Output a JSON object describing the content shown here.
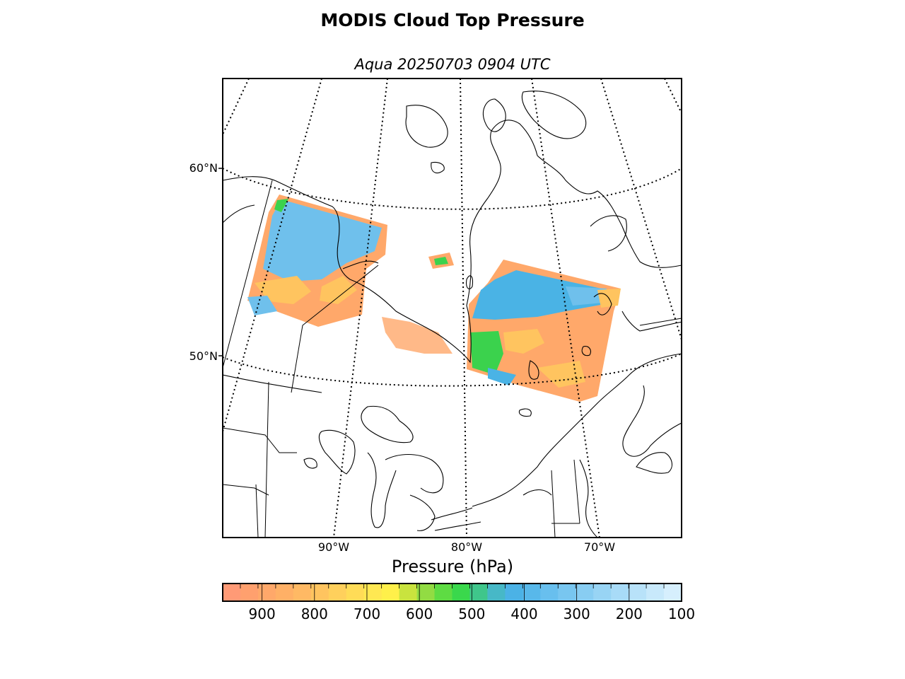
{
  "title": "MODIS Cloud Top Pressure",
  "subtitle": "Aqua 20250703 0904 UTC",
  "lat_labels": [
    "60°N",
    "50°N"
  ],
  "lon_labels": [
    "90°W",
    "80°W",
    "70°W"
  ],
  "colorbar": {
    "label": "Pressure (hPa)",
    "range": [
      975,
      100
    ],
    "tick_values": [
      900,
      800,
      700,
      600,
      500,
      400,
      300,
      200,
      100
    ],
    "tick_labels": [
      "900",
      "800",
      "700",
      "600",
      "500",
      "400",
      "300",
      "200",
      "100"
    ],
    "colors": [
      "#ff9a76",
      "#ffa06e",
      "#ffa86a",
      "#ffb066",
      "#ffb964",
      "#ffc45f",
      "#ffd05c",
      "#ffdc57",
      "#ffe852",
      "#fff04a",
      "#c9e33e",
      "#92dc43",
      "#5edc43",
      "#3ad84c",
      "#3fc68b",
      "#47b8c7",
      "#4bb2e6",
      "#58b8ea",
      "#68bfee",
      "#78c6f0",
      "#88cdf2",
      "#98d4f4",
      "#a8dbf7",
      "#b8e2f9",
      "#c8e9fb",
      "#d6effd"
    ]
  },
  "map_colors": {
    "high_cloud": "#6fc0ec",
    "mid_high": "#4ab3e5",
    "mid": "#3bd24d",
    "low": "#ffa86a",
    "low_mid": "#ffc45f",
    "coast": "#000000",
    "graticule": "#000000"
  }
}
